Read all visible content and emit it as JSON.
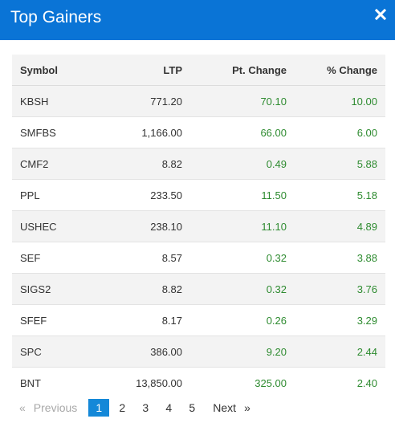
{
  "modal": {
    "title": "Top Gainers",
    "close_icon": "close-icon"
  },
  "table": {
    "headers": [
      "Symbol",
      "LTP",
      "Pt. Change",
      "% Change"
    ],
    "rows": [
      [
        "KBSH",
        "771.20",
        "70.10",
        "10.00"
      ],
      [
        "SMFBS",
        "1,166.00",
        "66.00",
        "6.00"
      ],
      [
        "CMF2",
        "8.82",
        "0.49",
        "5.88"
      ],
      [
        "PPL",
        "233.50",
        "11.50",
        "5.18"
      ],
      [
        "USHEC",
        "238.10",
        "11.10",
        "4.89"
      ],
      [
        "SEF",
        "8.57",
        "0.32",
        "3.88"
      ],
      [
        "SIGS2",
        "8.82",
        "0.32",
        "3.76"
      ],
      [
        "SFEF",
        "8.17",
        "0.26",
        "3.29"
      ],
      [
        "SPC",
        "386.00",
        "9.20",
        "2.44"
      ],
      [
        "BNT",
        "13,850.00",
        "325.00",
        "2.40"
      ]
    ],
    "positive_color": "#2e8b30"
  },
  "pagination": {
    "prev_arrow": "«",
    "prev_label": "Previous",
    "pages": [
      "1",
      "2",
      "3",
      "4",
      "5"
    ],
    "active_page": "1",
    "next_label": "Next",
    "next_arrow": "»"
  },
  "colors": {
    "header_bg": "#0a74d6",
    "active_page_bg": "#1488d8"
  }
}
